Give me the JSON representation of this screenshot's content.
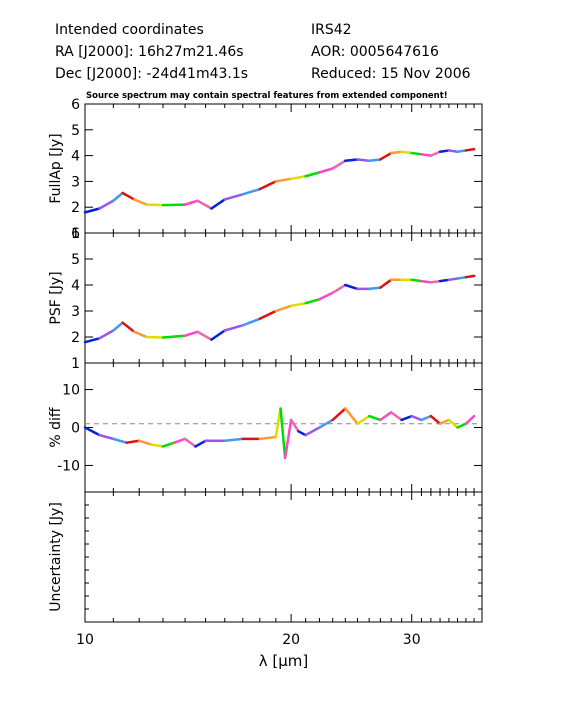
{
  "header": {
    "line1_left": "Intended coordinates",
    "line2_left": "RA  [J2000]: 16h27m21.46s",
    "line3_left": "Dec [J2000]: -24d41m43.1s",
    "line1_right": "IRS42",
    "line2_right": "AOR:  0005647616",
    "line3_right": "Reduced: 15 Nov 2006"
  },
  "note": "Source spectrum may contain spectral features from extended component!",
  "colors": {
    "segments": [
      "#0022dd",
      "#9955ee",
      "#4499ee",
      "#dd1111",
      "#ff9933",
      "#dddd00",
      "#00dd00",
      "#ff44cc",
      "#ee66aa"
    ],
    "dashed": "#888888"
  },
  "chart_data": {
    "type": "line",
    "x_scale": "log",
    "xlim": [
      10,
      38
    ],
    "xlabel": "λ [μm]",
    "x_ticks": [
      10,
      20,
      30
    ],
    "x_tick_labels": [
      "10",
      "20",
      "30"
    ],
    "panels": [
      {
        "name": "fullap",
        "ylabel": "FullAp [Jy]",
        "ylim": [
          1,
          6
        ],
        "y_ticks": [
          1,
          2,
          3,
          4,
          5,
          6
        ],
        "y_tick_labels": [
          "1",
          "2",
          "3",
          "4",
          "5",
          "6"
        ],
        "points": [
          [
            10,
            1.8
          ],
          [
            10.5,
            1.95
          ],
          [
            11.0,
            2.25
          ],
          [
            11.35,
            2.55
          ],
          [
            11.8,
            2.3
          ],
          [
            12.3,
            2.1
          ],
          [
            13.0,
            2.08
          ],
          [
            14.0,
            2.1
          ],
          [
            14.6,
            2.25
          ],
          [
            15.3,
            1.95
          ],
          [
            16.0,
            2.3
          ],
          [
            17.0,
            2.5
          ],
          [
            18.0,
            2.7
          ],
          [
            19.0,
            3.0
          ],
          [
            20.0,
            3.1
          ],
          [
            21.0,
            3.2
          ],
          [
            22.0,
            3.35
          ],
          [
            23.0,
            3.5
          ],
          [
            24.0,
            3.8
          ],
          [
            25.0,
            3.85
          ],
          [
            26.0,
            3.8
          ],
          [
            27.0,
            3.85
          ],
          [
            28.0,
            4.1
          ],
          [
            29.0,
            4.15
          ],
          [
            30.0,
            4.1
          ],
          [
            31.0,
            4.05
          ],
          [
            32.0,
            4.0
          ],
          [
            33.0,
            4.15
          ],
          [
            34.0,
            4.2
          ],
          [
            35.0,
            4.15
          ],
          [
            36.0,
            4.2
          ],
          [
            37.0,
            4.25
          ]
        ]
      },
      {
        "name": "psf",
        "ylabel": "PSF [Jy]",
        "ylim": [
          1,
          6
        ],
        "y_ticks": [
          1,
          2,
          3,
          4,
          5,
          6
        ],
        "y_tick_labels": [
          "1",
          "2",
          "3",
          "4",
          "5",
          "6"
        ],
        "points": [
          [
            10,
            1.8
          ],
          [
            10.5,
            1.95
          ],
          [
            11.0,
            2.25
          ],
          [
            11.35,
            2.55
          ],
          [
            11.8,
            2.2
          ],
          [
            12.3,
            2.0
          ],
          [
            13.0,
            1.98
          ],
          [
            14.0,
            2.05
          ],
          [
            14.6,
            2.2
          ],
          [
            15.3,
            1.9
          ],
          [
            16.0,
            2.25
          ],
          [
            17.0,
            2.45
          ],
          [
            18.0,
            2.7
          ],
          [
            19.0,
            3.0
          ],
          [
            20.0,
            3.2
          ],
          [
            21.0,
            3.3
          ],
          [
            22.0,
            3.45
          ],
          [
            23.0,
            3.7
          ],
          [
            24.0,
            4.0
          ],
          [
            25.0,
            3.85
          ],
          [
            26.0,
            3.85
          ],
          [
            27.0,
            3.9
          ],
          [
            28.0,
            4.2
          ],
          [
            29.0,
            4.2
          ],
          [
            30.0,
            4.2
          ],
          [
            31.0,
            4.15
          ],
          [
            32.0,
            4.1
          ],
          [
            33.0,
            4.15
          ],
          [
            34.0,
            4.2
          ],
          [
            35.0,
            4.25
          ],
          [
            36.0,
            4.3
          ],
          [
            37.0,
            4.35
          ]
        ]
      },
      {
        "name": "diff",
        "ylabel": "% diff",
        "ylim": [
          -17,
          17
        ],
        "y_ticks": [
          -10,
          0,
          10
        ],
        "y_tick_labels": [
          "-10",
          "0",
          "10"
        ],
        "reference_line": 1,
        "points": [
          [
            10,
            0
          ],
          [
            10.5,
            -2
          ],
          [
            11.0,
            -3
          ],
          [
            11.5,
            -4
          ],
          [
            12.0,
            -3.5
          ],
          [
            12.5,
            -4.5
          ],
          [
            13.0,
            -5
          ],
          [
            13.5,
            -4
          ],
          [
            14.0,
            -3
          ],
          [
            14.5,
            -5
          ],
          [
            15.0,
            -3.5
          ],
          [
            16.0,
            -3.5
          ],
          [
            17.0,
            -3
          ],
          [
            18.0,
            -3
          ],
          [
            19.0,
            -2.5
          ],
          [
            19.3,
            5
          ],
          [
            19.6,
            -8
          ],
          [
            20.0,
            2
          ],
          [
            20.5,
            -1
          ],
          [
            21.0,
            -2
          ],
          [
            22.0,
            0
          ],
          [
            23.0,
            2
          ],
          [
            24.0,
            5
          ],
          [
            25.0,
            1
          ],
          [
            26.0,
            3
          ],
          [
            27.0,
            2
          ],
          [
            28.0,
            4
          ],
          [
            29.0,
            2
          ],
          [
            30.0,
            3
          ],
          [
            31.0,
            2
          ],
          [
            32.0,
            3
          ],
          [
            33.0,
            1
          ],
          [
            34.0,
            2
          ],
          [
            35.0,
            0
          ],
          [
            36.0,
            1
          ],
          [
            37.0,
            3
          ]
        ]
      },
      {
        "name": "uncertainty",
        "ylabel": "Uncertainty [Jy]",
        "y_scale": "log",
        "points": []
      }
    ]
  }
}
